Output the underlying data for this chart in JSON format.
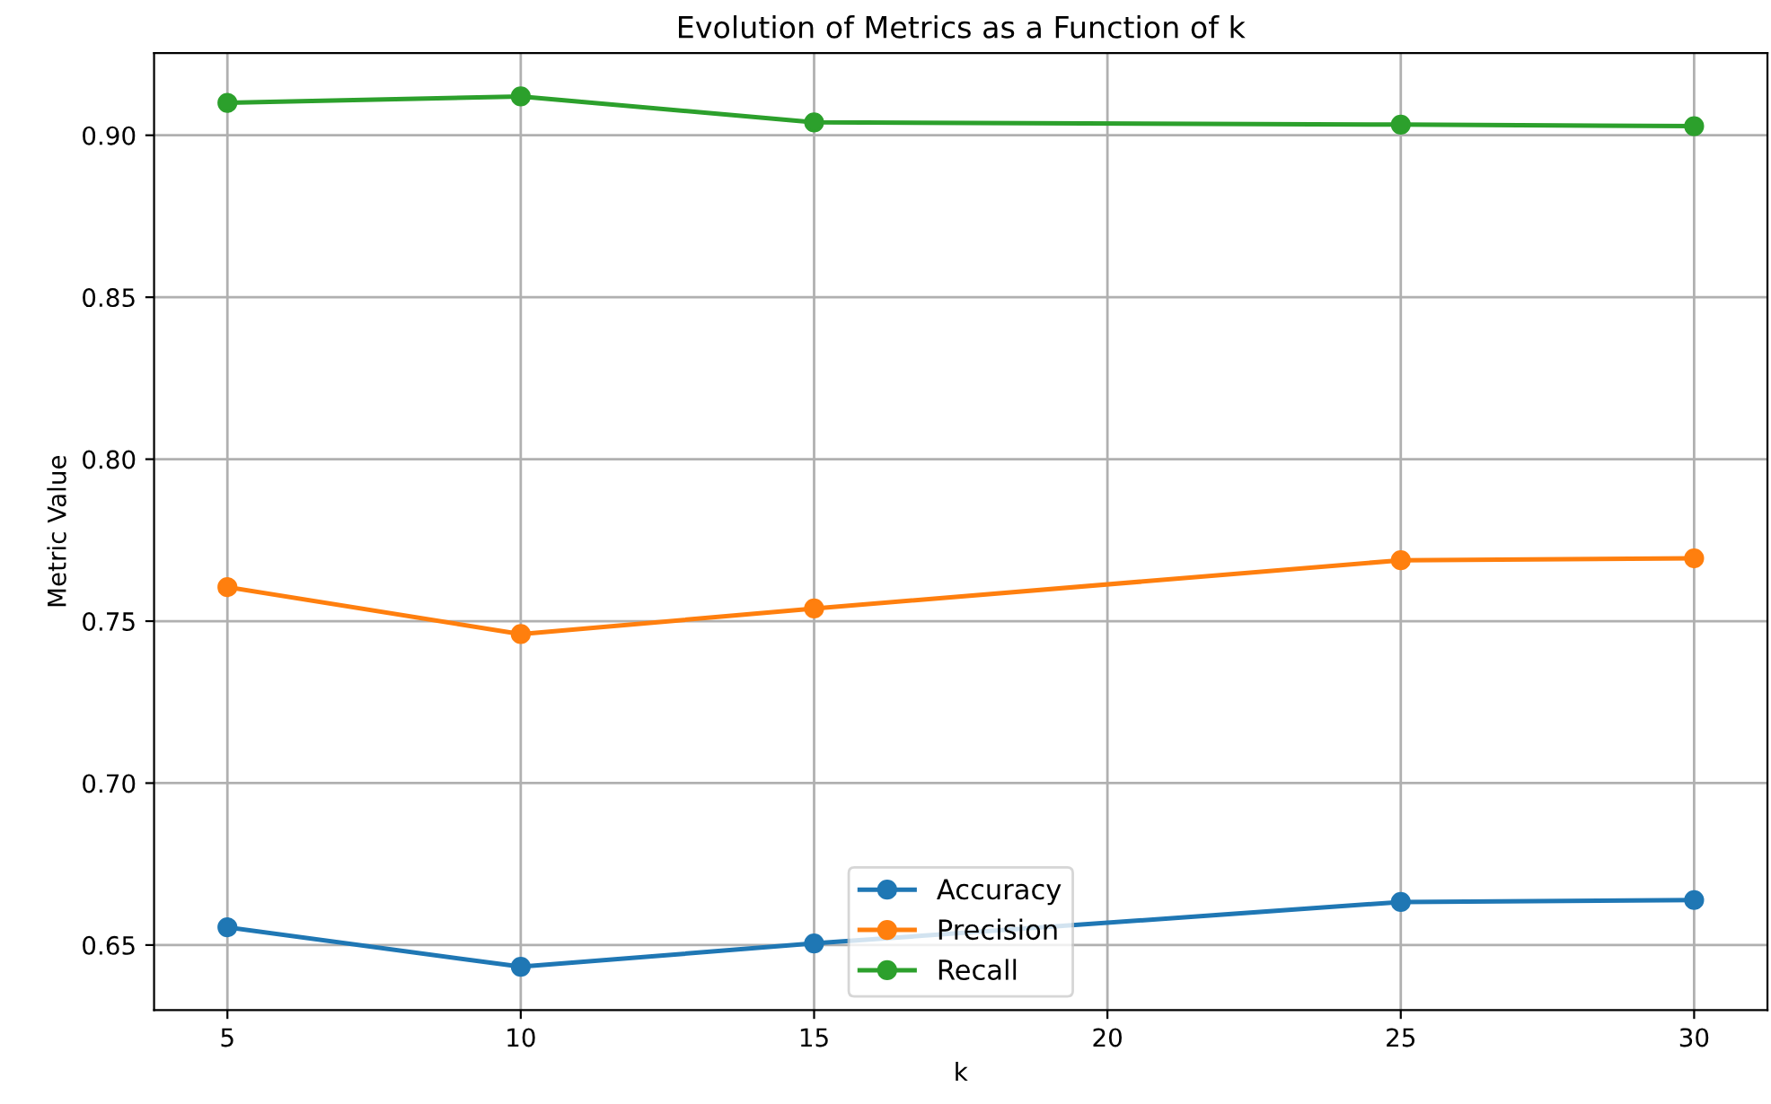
{
  "chart_data": {
    "type": "line",
    "title": "Evolution of Metrics as a Function of k",
    "xlabel": "k",
    "ylabel": "Metric Value",
    "x": [
      5,
      10,
      15,
      25,
      30
    ],
    "series": [
      {
        "name": "Accuracy",
        "color": "#1f77b4",
        "values": [
          0.6555,
          0.6433,
          0.6505,
          0.6633,
          0.6639
        ]
      },
      {
        "name": "Precision",
        "color": "#ff7f0e",
        "values": [
          0.7605,
          0.746,
          0.7539,
          0.7688,
          0.7694
        ]
      },
      {
        "name": "Recall",
        "color": "#2ca02c",
        "values": [
          0.91,
          0.912,
          0.904,
          0.9033,
          0.9028
        ]
      }
    ],
    "xlim": [
      3.75,
      31.25
    ],
    "xticks": [
      5,
      10,
      15,
      20,
      25,
      30
    ],
    "ylim": [
      0.6299,
      0.9254
    ],
    "yticks": [
      {
        "value": 0.65,
        "label": "0.65"
      },
      {
        "value": 0.7,
        "label": "0.70"
      },
      {
        "value": 0.75,
        "label": "0.75"
      },
      {
        "value": 0.8,
        "label": "0.80"
      },
      {
        "value": 0.85,
        "label": "0.85"
      },
      {
        "value": 0.9,
        "label": "0.90"
      }
    ],
    "grid": true,
    "legend": "bottom",
    "marker": "circle",
    "line_style": "solid"
  }
}
